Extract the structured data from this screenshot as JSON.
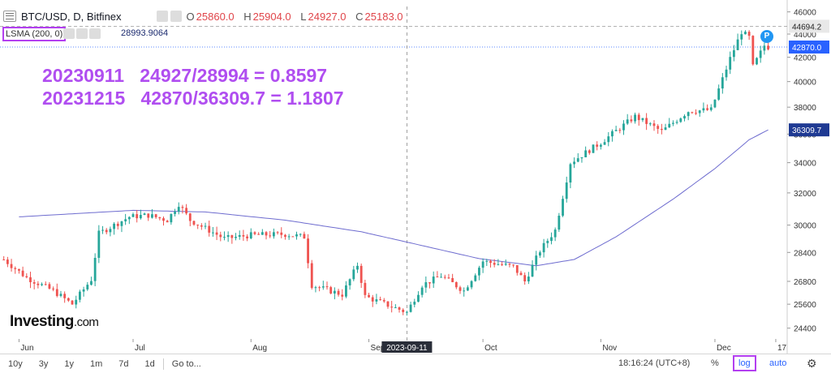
{
  "header": {
    "symbol": "BTC/USD, D, Bitfinex",
    "open_label": "O",
    "open": "25860.0",
    "high_label": "H",
    "high": "25904.0",
    "low_label": "L",
    "low": "24927.0",
    "close_label": "C",
    "close": "25183.0"
  },
  "indicator": {
    "label": "LSMA (200, 0)",
    "value": "28993.9064"
  },
  "annotations": {
    "line1": "20230911   24927/28994 = 0.8597",
    "line2": "20231215   42870/36309.7 = 1.1807"
  },
  "logo": {
    "brand": "Investing",
    "suffix": ".com"
  },
  "badge": {
    "text": "P"
  },
  "bottom": {
    "ranges": [
      "10y",
      "3y",
      "1y",
      "1m",
      "7d",
      "1d"
    ],
    "goto": "Go to...",
    "time": "18:16:24 (UTC+8)",
    "percent": "%",
    "log": "log",
    "auto": "auto"
  },
  "colors": {
    "up": "#26a69a",
    "down": "#ef5350",
    "lsma": "#6e6ccf",
    "accent": "#b33ff0",
    "current_label": "#1f3a93"
  },
  "chart_data": {
    "type": "candlestick",
    "scale": "log",
    "ylim": [
      23800,
      46500
    ],
    "y_ticks": [
      24400,
      25600,
      26800,
      28400,
      30000,
      32000,
      34000,
      36000,
      38000,
      40000,
      42000,
      44000,
      46000
    ],
    "x_labels": [
      {
        "label": "Jun",
        "date": "2023-06-01"
      },
      {
        "label": "Jul",
        "date": "2023-07-01"
      },
      {
        "label": "Aug",
        "date": "2023-08-01"
      },
      {
        "label": "Sep",
        "date": "2023-09-01"
      },
      {
        "label": "Oct",
        "date": "2023-10-01"
      },
      {
        "label": "Nov",
        "date": "2023-11-01"
      },
      {
        "label": "Dec",
        "date": "2023-12-01"
      },
      {
        "label": "17",
        "date": "2023-12-17"
      }
    ],
    "crosshair": {
      "date": "2023-09-11",
      "label": "2023-09-11"
    },
    "price_labels": [
      {
        "value": 44694.2,
        "text": "44694.2",
        "style": "gray"
      },
      {
        "value": 42870.0,
        "text": "42870.0",
        "style": "blue"
      },
      {
        "value": 36309.7,
        "text": "36309.7",
        "style": "navy"
      }
    ],
    "lsma_anchors": [
      [
        "2023-06-01",
        30500
      ],
      [
        "2023-07-01",
        30900
      ],
      [
        "2023-07-20",
        30800
      ],
      [
        "2023-08-10",
        30300
      ],
      [
        "2023-08-30",
        29600
      ],
      [
        "2023-09-11",
        28994
      ],
      [
        "2023-09-30",
        28050
      ],
      [
        "2023-10-15",
        27650
      ],
      [
        "2023-10-25",
        28000
      ],
      [
        "2023-11-05",
        29300
      ],
      [
        "2023-11-20",
        31600
      ],
      [
        "2023-12-01",
        33600
      ],
      [
        "2023-12-10",
        35600
      ],
      [
        "2023-12-15",
        36309.7
      ]
    ],
    "close_anchors": [
      [
        "2023-05-28",
        28000
      ],
      [
        "2023-06-03",
        27000
      ],
      [
        "2023-06-10",
        26300
      ],
      [
        "2023-06-15",
        25600
      ],
      [
        "2023-06-20",
        26900
      ],
      [
        "2023-06-22",
        29500
      ],
      [
        "2023-06-30",
        30500
      ],
      [
        "2023-07-05",
        30600
      ],
      [
        "2023-07-10",
        30300
      ],
      [
        "2023-07-13",
        31300
      ],
      [
        "2023-07-16",
        30300
      ],
      [
        "2023-07-25",
        29200
      ],
      [
        "2023-08-01",
        29400
      ],
      [
        "2023-08-10",
        29450
      ],
      [
        "2023-08-15",
        29300
      ],
      [
        "2023-08-17",
        26600
      ],
      [
        "2023-08-25",
        26100
      ],
      [
        "2023-08-29",
        27700
      ],
      [
        "2023-08-31",
        26000
      ],
      [
        "2023-09-11",
        25183
      ],
      [
        "2023-09-15",
        26600
      ],
      [
        "2023-09-20",
        27100
      ],
      [
        "2023-09-26",
        26300
      ],
      [
        "2023-10-01",
        27900
      ],
      [
        "2023-10-09",
        27600
      ],
      [
        "2023-10-12",
        26800
      ],
      [
        "2023-10-16",
        28500
      ],
      [
        "2023-10-20",
        29700
      ],
      [
        "2023-10-24",
        34000
      ],
      [
        "2023-11-01",
        35400
      ],
      [
        "2023-11-10",
        37300
      ],
      [
        "2023-11-17",
        36200
      ],
      [
        "2023-11-24",
        37700
      ],
      [
        "2023-11-30",
        37800
      ],
      [
        "2023-12-05",
        41900
      ],
      [
        "2023-12-08",
        44200
      ],
      [
        "2023-12-10",
        43700
      ],
      [
        "2023-12-11",
        41200
      ],
      [
        "2023-12-14",
        43000
      ],
      [
        "2023-12-15",
        42870
      ]
    ]
  }
}
